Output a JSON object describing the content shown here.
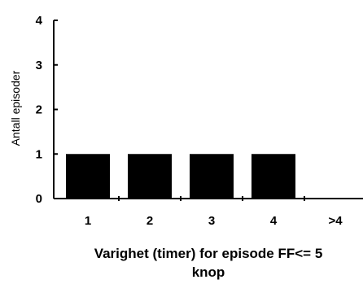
{
  "chart_data": {
    "type": "bar",
    "categories": [
      "1",
      "2",
      "3",
      "4",
      ">4"
    ],
    "values": [
      1,
      1,
      1,
      1,
      0
    ],
    "ylim": [
      0,
      4
    ],
    "yticks": [
      "0",
      "1",
      "2",
      "3",
      "4"
    ],
    "ylabel": "Antall episoder",
    "xlabel_lines": [
      "Varighet (timer) for episode FF<= 5",
      "knop"
    ],
    "grid": false,
    "legend": "none",
    "bar_color": "#000000"
  }
}
